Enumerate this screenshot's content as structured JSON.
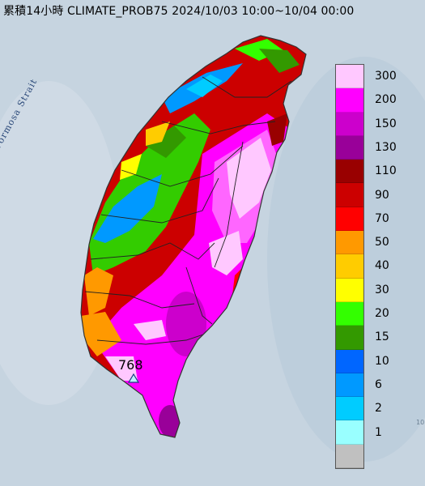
{
  "title": "累積14小時 CLIMATE_PROB75 2024/10/03 10:00~10/04 00:00",
  "sea_label": "Formosa Strait",
  "max_station": {
    "value": "768",
    "marker": "triangle-marker-icon"
  },
  "edge_text": "10",
  "legend": {
    "levels": [
      {
        "label": "300",
        "color": "#ffc8ff"
      },
      {
        "label": "200",
        "color": "#ff00ff"
      },
      {
        "label": "150",
        "color": "#cc00cc"
      },
      {
        "label": "130",
        "color": "#990099"
      },
      {
        "label": "110",
        "color": "#990000"
      },
      {
        "label": "90",
        "color": "#cc0000"
      },
      {
        "label": "70",
        "color": "#ff0000"
      },
      {
        "label": "50",
        "color": "#ff9900"
      },
      {
        "label": "40",
        "color": "#ffcc00"
      },
      {
        "label": "30",
        "color": "#ffff00"
      },
      {
        "label": "20",
        "color": "#33ff00"
      },
      {
        "label": "15",
        "color": "#339900"
      },
      {
        "label": "10",
        "color": "#0066ff"
      },
      {
        "label": "6",
        "color": "#0099ff"
      },
      {
        "label": "2",
        "color": "#00ccff"
      },
      {
        "label": "1",
        "color": "#99ffff"
      },
      {
        "label": "",
        "color": "#c0c0c0"
      }
    ]
  }
}
